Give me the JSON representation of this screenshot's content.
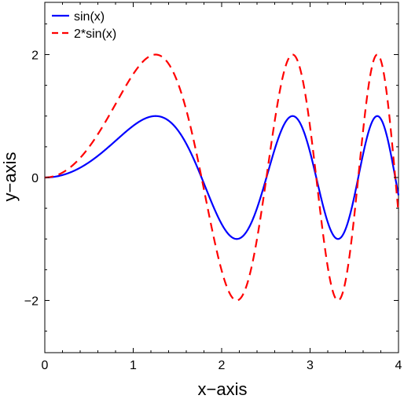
{
  "chart_data": {
    "type": "line",
    "xlabel": "x−axis",
    "ylabel": "y−axis",
    "xlim": [
      0,
      4
    ],
    "ylim": [
      -2.85,
      2.85
    ],
    "x_ticks": [
      0,
      1,
      2,
      3,
      4
    ],
    "x_tick_labels": [
      "0",
      "1",
      "2",
      "3",
      "4"
    ],
    "y_ticks": [
      -2,
      0,
      2
    ],
    "y_tick_labels": [
      "−2",
      "0",
      "2"
    ],
    "grid": false,
    "legend_position": "top-left",
    "series": [
      {
        "name": "sin(x)",
        "color": "#0000ff",
        "style": "solid",
        "expression": "sin(x^2)",
        "x": [
          0,
          0.25,
          0.5,
          0.75,
          1.0,
          1.25,
          1.5,
          1.75,
          2.0,
          2.25,
          2.5,
          2.75,
          3.0,
          3.25,
          3.5,
          3.75,
          4.0
        ],
        "values": [
          0,
          0.06,
          0.25,
          0.53,
          0.84,
          1.0,
          0.78,
          0.08,
          -0.76,
          -0.95,
          -0.03,
          0.96,
          0.41,
          -0.9,
          -0.31,
          1.0,
          -0.29
        ]
      },
      {
        "name": "2*sin(x)",
        "color": "#ff0000",
        "style": "dashed",
        "expression": "2*sin(x^2)",
        "x": [
          0,
          0.25,
          0.5,
          0.75,
          1.0,
          1.25,
          1.5,
          1.75,
          2.0,
          2.25,
          2.5,
          2.75,
          3.0,
          3.25,
          3.5,
          3.75,
          4.0
        ],
        "values": [
          0,
          0.12,
          0.49,
          1.07,
          1.68,
          2.0,
          1.56,
          0.16,
          -1.51,
          -1.9,
          -0.07,
          1.92,
          0.82,
          -1.79,
          -0.62,
          2.0,
          -0.58
        ]
      }
    ]
  }
}
